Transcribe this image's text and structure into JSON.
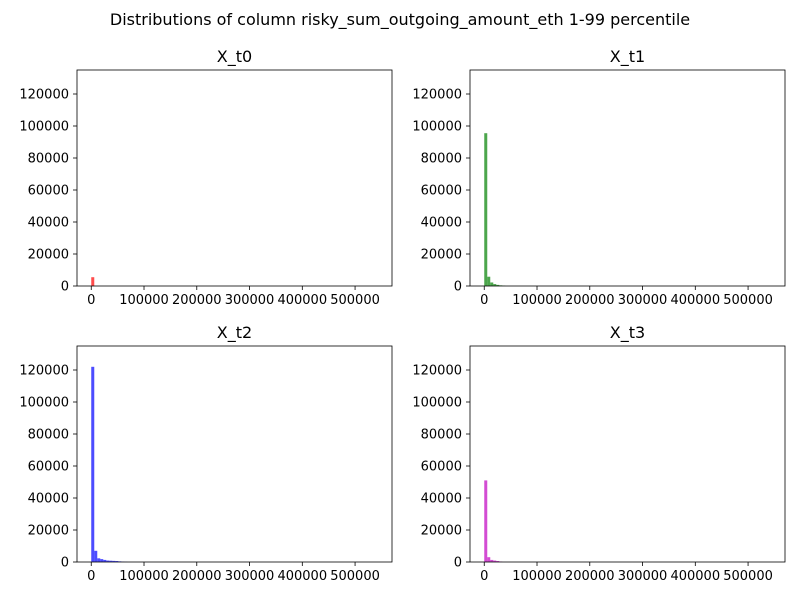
{
  "figure": {
    "suptitle": "Distributions of column risky_sum_outgoing_amount_eth 1-99 percentile"
  },
  "chart_data": [
    {
      "type": "bar",
      "title": "X_t0",
      "color": "#ff0000",
      "alpha": 0.7,
      "xlim": [
        -27000,
        570000
      ],
      "ylim": [
        0,
        135000
      ],
      "xticks": [
        0,
        100000,
        200000,
        300000,
        400000,
        500000
      ],
      "yticks": [
        0,
        20000,
        40000,
        60000,
        80000,
        100000,
        120000
      ],
      "bin_width": 5700,
      "bin_edges": [
        0,
        5700,
        11400,
        17100
      ],
      "counts": [
        5500,
        0,
        0
      ]
    },
    {
      "type": "bar",
      "title": "X_t1",
      "color": "#008000",
      "alpha": 0.7,
      "xlim": [
        -27000,
        570000
      ],
      "ylim": [
        0,
        135000
      ],
      "xticks": [
        0,
        100000,
        200000,
        300000,
        400000,
        500000
      ],
      "yticks": [
        0,
        20000,
        40000,
        60000,
        80000,
        100000,
        120000
      ],
      "bin_width": 5700,
      "bin_edges": [
        0,
        5700,
        11400,
        17100,
        22800,
        28500,
        34200,
        39900
      ],
      "counts": [
        95500,
        5800,
        2200,
        1200,
        700,
        400,
        200
      ]
    },
    {
      "type": "bar",
      "title": "X_t2",
      "color": "#0000ff",
      "alpha": 0.7,
      "xlim": [
        -27000,
        570000
      ],
      "ylim": [
        0,
        135000
      ],
      "xticks": [
        0,
        100000,
        200000,
        300000,
        400000,
        500000
      ],
      "yticks": [
        0,
        20000,
        40000,
        60000,
        80000,
        100000,
        120000
      ],
      "bin_width": 5700,
      "bin_edges": [
        0,
        5700,
        11400,
        17100,
        22800,
        28500,
        34200,
        39900,
        45600,
        51300,
        57000,
        62700,
        68400
      ],
      "counts": [
        122000,
        7000,
        2300,
        1800,
        1300,
        900,
        800,
        700,
        600,
        400,
        200,
        100
      ]
    },
    {
      "type": "bar",
      "title": "X_t3",
      "color": "#c000c0",
      "alpha": 0.7,
      "xlim": [
        -27000,
        570000
      ],
      "ylim": [
        0,
        135000
      ],
      "xticks": [
        0,
        100000,
        200000,
        300000,
        400000,
        500000
      ],
      "yticks": [
        0,
        20000,
        40000,
        60000,
        80000,
        100000,
        120000
      ],
      "bin_width": 5700,
      "bin_edges": [
        0,
        5700,
        11400,
        17100,
        22800,
        28500,
        34200
      ],
      "counts": [
        51000,
        3000,
        1300,
        900,
        600,
        300
      ]
    }
  ]
}
